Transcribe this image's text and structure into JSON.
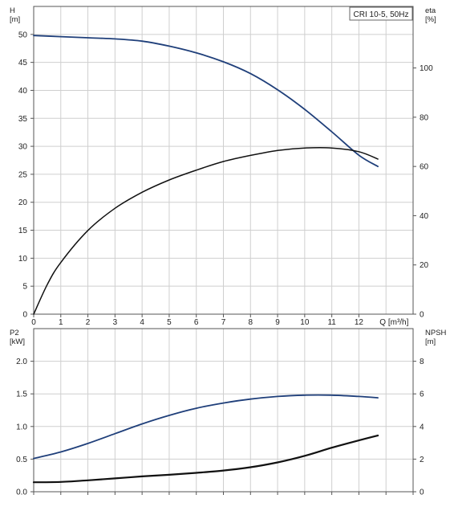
{
  "chart_data": [
    {
      "panel": "top",
      "type": "line",
      "legend": "CRI 10-5, 50Hz",
      "left_axis": {
        "label": "H",
        "unit": "[m]",
        "range": [
          0,
          55
        ],
        "ticks": [
          0,
          5,
          10,
          15,
          20,
          25,
          30,
          35,
          40,
          45,
          50
        ]
      },
      "right_axis": {
        "label": "eta",
        "unit": "[%]",
        "range": [
          0,
          125
        ],
        "ticks": [
          0,
          20,
          40,
          60,
          80,
          100
        ]
      },
      "x_axis": {
        "label": "Q",
        "unit": "[m³/h]",
        "range": [
          0,
          14
        ],
        "ticks": [
          0,
          1,
          2,
          3,
          4,
          5,
          6,
          7,
          8,
          9,
          10,
          11,
          12
        ]
      },
      "grid": true,
      "series": [
        {
          "axis": "left",
          "color": "#1f3f7a",
          "x": [
            0,
            1,
            2,
            3,
            4,
            5,
            6,
            7,
            8,
            9,
            10,
            11,
            12,
            12.7
          ],
          "y": [
            49.8,
            49.6,
            49.4,
            49.2,
            48.8,
            47.9,
            46.7,
            45.1,
            43.0,
            40.1,
            36.6,
            32.6,
            28.4,
            26.4
          ]
        },
        {
          "axis": "right",
          "color": "#111111",
          "x": [
            0,
            0.5,
            1,
            2,
            3,
            4,
            5,
            6,
            7,
            8,
            9,
            10,
            11,
            12,
            12.7
          ],
          "y": [
            0,
            12,
            21,
            34,
            43,
            49.5,
            54.5,
            58.5,
            62,
            64.5,
            66.5,
            67.5,
            67.5,
            66,
            63
          ]
        }
      ]
    },
    {
      "panel": "bottom",
      "type": "line",
      "left_axis": {
        "label": "P2",
        "unit": "[kW]",
        "range": [
          0,
          2.5
        ],
        "ticks": [
          "0.0",
          "0.5",
          "1.0",
          "1.5",
          "2.0"
        ]
      },
      "right_axis": {
        "label": "NPSH",
        "unit": "[m]",
        "range": [
          0,
          10
        ],
        "ticks": [
          "0",
          "2",
          "4",
          "6",
          "8"
        ]
      },
      "x_axis": {
        "range": [
          0,
          14
        ]
      },
      "grid": true,
      "series": [
        {
          "axis": "left",
          "color": "#1f3f7a",
          "x": [
            0,
            1,
            2,
            3,
            4,
            5,
            6,
            7,
            8,
            9,
            10,
            11,
            12,
            12.7
          ],
          "y": [
            0.51,
            0.61,
            0.74,
            0.89,
            1.04,
            1.17,
            1.28,
            1.36,
            1.42,
            1.46,
            1.48,
            1.48,
            1.46,
            1.44
          ]
        },
        {
          "axis": "right",
          "color": "#111111",
          "x": [
            0,
            1,
            2,
            3,
            4,
            5,
            6,
            7,
            8,
            9,
            10,
            11,
            12,
            12.7
          ],
          "y": [
            0.58,
            0.6,
            0.7,
            0.82,
            0.94,
            1.04,
            1.16,
            1.3,
            1.5,
            1.8,
            2.2,
            2.7,
            3.15,
            3.45
          ]
        }
      ]
    }
  ]
}
